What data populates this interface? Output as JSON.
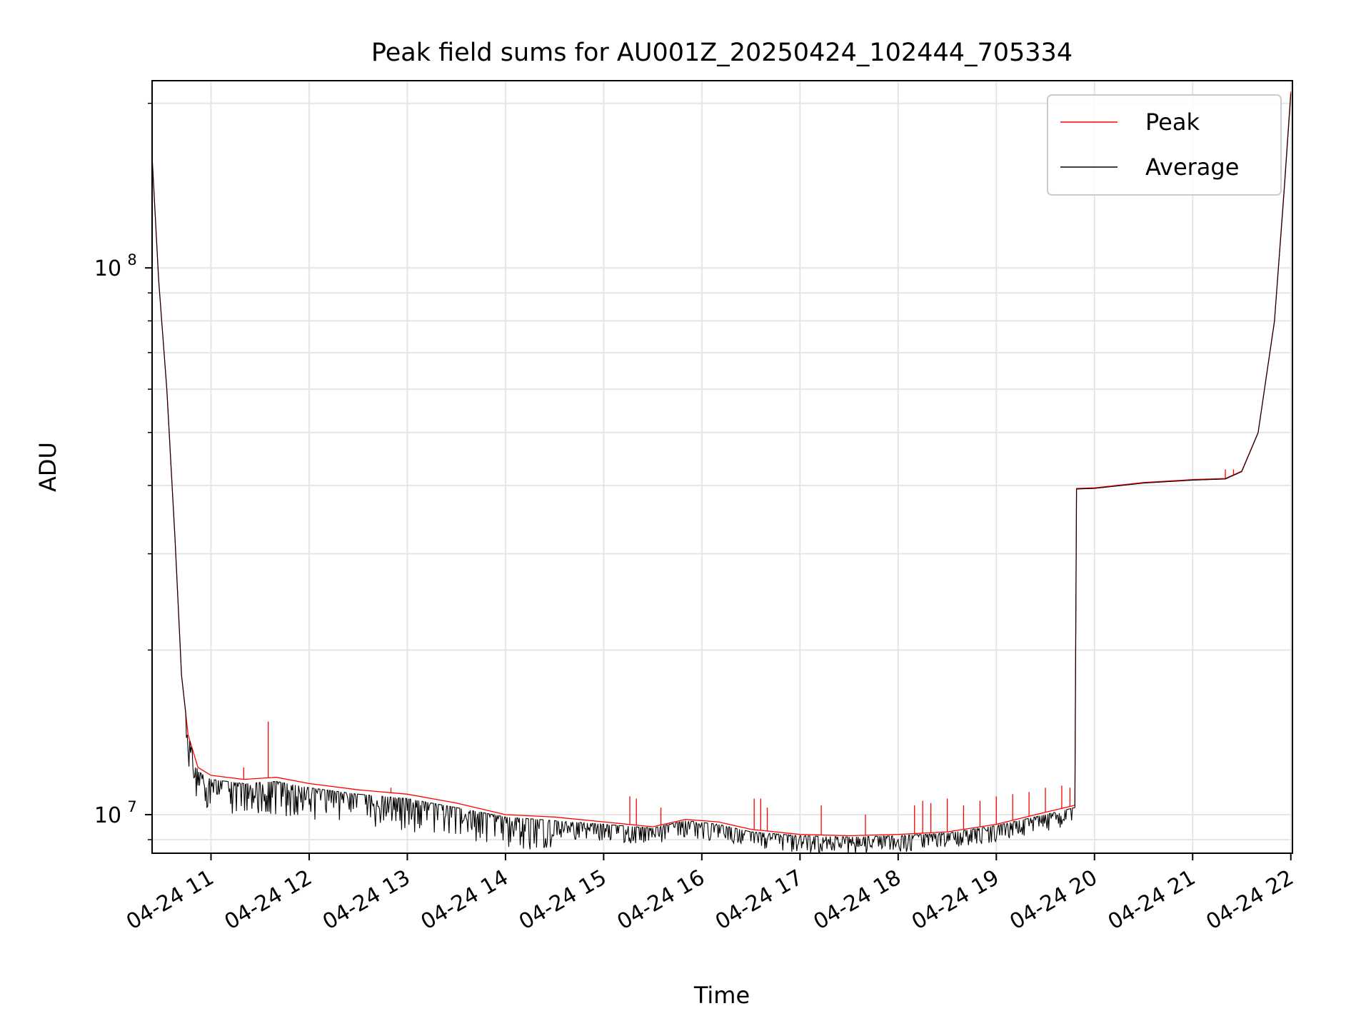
{
  "chart_data": {
    "type": "line",
    "title": "Peak field sums for AU001Z_20250424_102444_705334",
    "xlabel": "Time",
    "ylabel": "ADU",
    "yscale": "log",
    "ylim": [
      8500000,
      220000000
    ],
    "xlim": [
      "2025-04-24 10:24",
      "2025-04-24 22:01"
    ],
    "x_ticks": [
      {
        "x": "2025-04-24 11:00",
        "label": "04-24 11"
      },
      {
        "x": "2025-04-24 12:00",
        "label": "04-24 12"
      },
      {
        "x": "2025-04-24 13:00",
        "label": "04-24 13"
      },
      {
        "x": "2025-04-24 14:00",
        "label": "04-24 14"
      },
      {
        "x": "2025-04-24 15:00",
        "label": "04-24 15"
      },
      {
        "x": "2025-04-24 16:00",
        "label": "04-24 16"
      },
      {
        "x": "2025-04-24 17:00",
        "label": "04-24 17"
      },
      {
        "x": "2025-04-24 18:00",
        "label": "04-24 18"
      },
      {
        "x": "2025-04-24 19:00",
        "label": "04-24 19"
      },
      {
        "x": "2025-04-24 20:00",
        "label": "04-24 20"
      },
      {
        "x": "2025-04-24 21:00",
        "label": "04-24 21"
      },
      {
        "x": "2025-04-24 22:00",
        "label": "04-24 22"
      }
    ],
    "y_ticks": [
      {
        "value": 10000000,
        "base": "10",
        "exp": "7"
      },
      {
        "value": 100000000,
        "base": "10",
        "exp": "8"
      }
    ],
    "grid": true,
    "legend_position": "top-right",
    "series": [
      {
        "name": "Peak",
        "color": "#ff0000",
        "points": [
          [
            "2025-04-24 10:24",
            160000000
          ],
          [
            "2025-04-24 10:28",
            95000000
          ],
          [
            "2025-04-24 10:33",
            60000000
          ],
          [
            "2025-04-24 10:38",
            32000000
          ],
          [
            "2025-04-24 10:42",
            18000000
          ],
          [
            "2025-04-24 10:46",
            14000000
          ],
          [
            "2025-04-24 10:52",
            12200000
          ],
          [
            "2025-04-24 11:00",
            11800000
          ],
          [
            "2025-04-24 11:20",
            11600000
          ],
          [
            "2025-04-24 11:40",
            11700000
          ],
          [
            "2025-04-24 12:00",
            11400000
          ],
          [
            "2025-04-24 12:30",
            11100000
          ],
          [
            "2025-04-24 13:00",
            10900000
          ],
          [
            "2025-04-24 13:30",
            10500000
          ],
          [
            "2025-04-24 14:00",
            10000000
          ],
          [
            "2025-04-24 14:30",
            9900000
          ],
          [
            "2025-04-24 15:00",
            9700000
          ],
          [
            "2025-04-24 15:30",
            9500000
          ],
          [
            "2025-04-24 15:50",
            9800000
          ],
          [
            "2025-04-24 16:10",
            9700000
          ],
          [
            "2025-04-24 16:30",
            9400000
          ],
          [
            "2025-04-24 17:00",
            9200000
          ],
          [
            "2025-04-24 17:30",
            9150000
          ],
          [
            "2025-04-24 18:00",
            9200000
          ],
          [
            "2025-04-24 18:30",
            9300000
          ],
          [
            "2025-04-24 19:00",
            9600000
          ],
          [
            "2025-04-24 19:30",
            10100000
          ],
          [
            "2025-04-24 19:48",
            10400000
          ],
          [
            "2025-04-24 19:49",
            39500000
          ],
          [
            "2025-04-24 20:00",
            39600000
          ],
          [
            "2025-04-24 20:30",
            40500000
          ],
          [
            "2025-04-24 21:00",
            41000000
          ],
          [
            "2025-04-24 21:20",
            41200000
          ],
          [
            "2025-04-24 21:30",
            42500000
          ],
          [
            "2025-04-24 21:40",
            50000000
          ],
          [
            "2025-04-24 21:50",
            80000000
          ],
          [
            "2025-04-24 21:56",
            140000000
          ],
          [
            "2025-04-24 22:00",
            210000000
          ]
        ],
        "spikes": [
          [
            "2025-04-24 11:20",
            12200000
          ],
          [
            "2025-04-24 11:35",
            14800000
          ],
          [
            "2025-04-24 12:50",
            11200000
          ],
          [
            "2025-04-24 15:16",
            10800000
          ],
          [
            "2025-04-24 15:20",
            10700000
          ],
          [
            "2025-04-24 15:35",
            10300000
          ],
          [
            "2025-04-24 16:32",
            10700000
          ],
          [
            "2025-04-24 16:36",
            10700000
          ],
          [
            "2025-04-24 16:40",
            10300000
          ],
          [
            "2025-04-24 17:13",
            10400000
          ],
          [
            "2025-04-24 17:40",
            10000000
          ],
          [
            "2025-04-24 18:10",
            10400000
          ],
          [
            "2025-04-24 18:15",
            10600000
          ],
          [
            "2025-04-24 18:20",
            10500000
          ],
          [
            "2025-04-24 18:30",
            10700000
          ],
          [
            "2025-04-24 18:40",
            10400000
          ],
          [
            "2025-04-24 18:50",
            10600000
          ],
          [
            "2025-04-24 19:00",
            10800000
          ],
          [
            "2025-04-24 19:10",
            10900000
          ],
          [
            "2025-04-24 19:20",
            11000000
          ],
          [
            "2025-04-24 19:30",
            11200000
          ],
          [
            "2025-04-24 19:40",
            11300000
          ],
          [
            "2025-04-24 19:45",
            11200000
          ],
          [
            "2025-04-24 21:20",
            42800000
          ],
          [
            "2025-04-24 21:25",
            42800000
          ]
        ]
      },
      {
        "name": "Average",
        "color": "#000000",
        "noise": "downward dips up to about 10% below the trend between 10:45 and 19:45",
        "points": [
          [
            "2025-04-24 10:24",
            160000000
          ],
          [
            "2025-04-24 10:28",
            95000000
          ],
          [
            "2025-04-24 10:33",
            60000000
          ],
          [
            "2025-04-24 10:38",
            32000000
          ],
          [
            "2025-04-24 10:42",
            18000000
          ],
          [
            "2025-04-24 10:46",
            14000000
          ],
          [
            "2025-04-24 10:52",
            12000000
          ],
          [
            "2025-04-24 11:00",
            11600000
          ],
          [
            "2025-04-24 11:20",
            11400000
          ],
          [
            "2025-04-24 11:40",
            11500000
          ],
          [
            "2025-04-24 12:00",
            11200000
          ],
          [
            "2025-04-24 12:30",
            10900000
          ],
          [
            "2025-04-24 13:00",
            10700000
          ],
          [
            "2025-04-24 13:30",
            10300000
          ],
          [
            "2025-04-24 14:00",
            9900000
          ],
          [
            "2025-04-24 14:30",
            9750000
          ],
          [
            "2025-04-24 15:00",
            9600000
          ],
          [
            "2025-04-24 15:30",
            9450000
          ],
          [
            "2025-04-24 15:50",
            9750000
          ],
          [
            "2025-04-24 16:10",
            9600000
          ],
          [
            "2025-04-24 16:30",
            9300000
          ],
          [
            "2025-04-24 17:00",
            9150000
          ],
          [
            "2025-04-24 17:30",
            9100000
          ],
          [
            "2025-04-24 18:00",
            9150000
          ],
          [
            "2025-04-24 18:30",
            9250000
          ],
          [
            "2025-04-24 19:00",
            9550000
          ],
          [
            "2025-04-24 19:30",
            10000000
          ],
          [
            "2025-04-24 19:48",
            10300000
          ],
          [
            "2025-04-24 19:49",
            39400000
          ],
          [
            "2025-04-24 20:00",
            39500000
          ],
          [
            "2025-04-24 20:30",
            40400000
          ],
          [
            "2025-04-24 21:00",
            40900000
          ],
          [
            "2025-04-24 21:20",
            41100000
          ],
          [
            "2025-04-24 21:30",
            42400000
          ],
          [
            "2025-04-24 21:40",
            49900000
          ],
          [
            "2025-04-24 21:50",
            79800000
          ],
          [
            "2025-04-24 21:56",
            139000000
          ],
          [
            "2025-04-24 22:00",
            208000000
          ]
        ]
      }
    ]
  }
}
